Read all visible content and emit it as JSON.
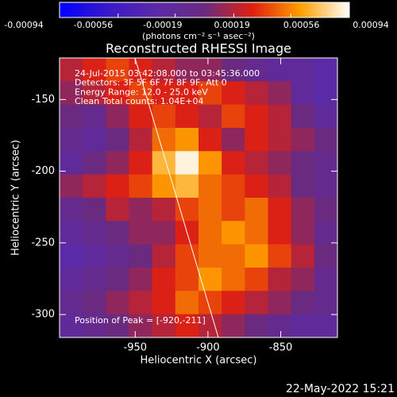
{
  "chart_data": {
    "type": "heatmap",
    "title": "Reconstructed RHESSI Image",
    "xlabel": "Heliocentric X (arcsec)",
    "ylabel": "Heliocentric Y (arcsec)",
    "xlim": [
      -1002,
      -811
    ],
    "ylim": [
      -316,
      -121
    ],
    "xticks": [
      -950,
      -900,
      -850
    ],
    "yticks": [
      -300,
      -250,
      -200,
      -150
    ],
    "annotations": [
      "24-Jul-2015 03:42:08.000 to 03:45:36.000",
      "Detectors: 3F 5F 6F 7F 8F 9F, Att 0",
      "Energy Range: 12.0 - 25.0 keV",
      "Clean    Total counts: 1.04E+04"
    ],
    "peak_label": "Position of Peak = [-920,-211]",
    "timestamp": "22-May-2022 15:21",
    "colormap": [
      "#0000ff",
      "#3a18c8",
      "#5a2aa8",
      "#6a2a80",
      "#e02010",
      "#ffa000",
      "#ffffff"
    ],
    "colorbar": {
      "label": "(photons cm⁻² s⁻¹ asec⁻²)",
      "lim": [
        -0.00094,
        0.00094
      ],
      "ticks": [
        -0.00094,
        -0.00056,
        -0.00019,
        0.00019,
        0.00056,
        0.00094
      ]
    },
    "z": [
      [
        0.0002,
        0.0003,
        0.0004,
        0.0003,
        0.0002,
        0.0001,
        0.0001,
        0.0,
        -0.0001,
        -0.0002,
        -0.0002,
        -0.0003
      ],
      [
        0.0001,
        0.0002,
        0.0003,
        0.0004,
        0.0003,
        0.0003,
        0.0004,
        0.0003,
        0.0002,
        0.0001,
        -0.0002,
        -0.0003
      ],
      [
        0.0,
        -0.0001,
        0.0001,
        0.0003,
        0.0004,
        0.0003,
        0.0002,
        0.0004,
        0.0003,
        0.0002,
        0.0,
        -0.0002
      ],
      [
        -0.0001,
        -0.0002,
        0.0,
        0.0002,
        0.0005,
        0.0006,
        0.0003,
        0.0001,
        0.0003,
        0.0002,
        0.0001,
        0.0
      ],
      [
        -0.0002,
        0.0,
        0.0001,
        0.0003,
        0.0007,
        0.0009,
        0.0006,
        0.0003,
        0.0002,
        0.0001,
        0.0,
        -0.0001
      ],
      [
        0.0001,
        0.0002,
        0.0003,
        0.0004,
        0.0006,
        0.0007,
        0.0005,
        0.0004,
        0.0003,
        0.0002,
        0.0,
        -0.0001
      ],
      [
        -0.0001,
        0.0,
        0.0002,
        0.0001,
        0.0002,
        0.0004,
        0.0005,
        0.0004,
        0.0005,
        0.0003,
        0.0001,
        0.0
      ],
      [
        -0.0002,
        -0.0001,
        0.0,
        0.0001,
        0.0001,
        0.0003,
        0.0005,
        0.0006,
        0.0005,
        0.0003,
        0.0001,
        -0.0001
      ],
      [
        -0.0003,
        -0.0002,
        -0.0001,
        0.0,
        0.0002,
        0.0004,
        0.0005,
        0.0005,
        0.0006,
        0.0004,
        0.0002,
        0.0
      ],
      [
        -0.0002,
        -0.0001,
        0.0,
        0.0001,
        0.0003,
        0.0004,
        0.0006,
        0.0005,
        0.0004,
        0.0002,
        0.0001,
        -0.0001
      ],
      [
        -0.0001,
        0.0,
        0.0001,
        0.0002,
        0.0003,
        0.0005,
        0.0004,
        0.0003,
        0.0002,
        0.0001,
        0.0,
        -0.0001
      ],
      [
        -0.0002,
        -0.0001,
        0.0,
        0.0001,
        0.0002,
        0.0003,
        0.0002,
        0.0001,
        0.0,
        -0.0001,
        -0.0002,
        -0.0002
      ]
    ]
  }
}
